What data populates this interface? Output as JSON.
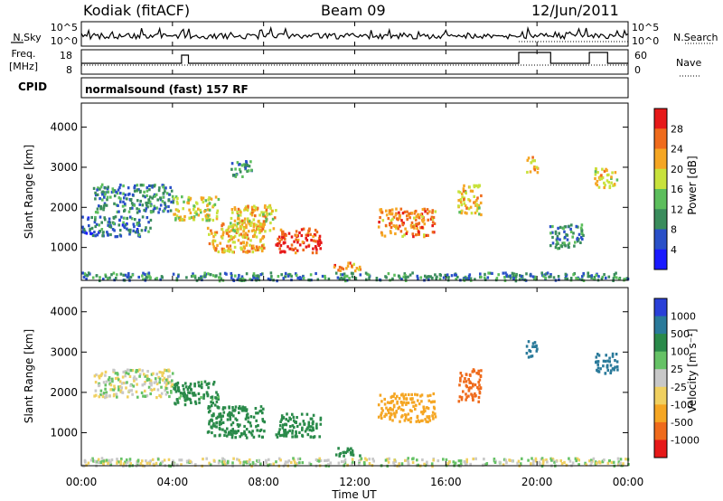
{
  "header": {
    "station": "Kodiak (fitACF)",
    "beam": "Beam 09",
    "date": "12/Jun/2011"
  },
  "panels": {
    "nsky_label": "N.Sky",
    "nsearch_label": "N.Search",
    "freq_label_1": "Freq.",
    "freq_label_2": "[MHz]",
    "nave_label": "Nave",
    "cpid_label": "CPID",
    "cpid_value": "normalsound (fast) 157 RF",
    "noise_ticks": [
      "10^5",
      "10^0"
    ],
    "freq_ticks": [
      "18",
      "8"
    ],
    "nave_ticks": [
      "60",
      "0"
    ]
  },
  "axes": {
    "ylabel": "Slant Range [km]",
    "xlabel": "Time UT",
    "yticks": [
      "4000",
      "3000",
      "2000",
      "1000"
    ],
    "xticks": [
      "00:00",
      "04:00",
      "08:00",
      "12:00",
      "16:00",
      "20:00",
      "00:00"
    ]
  },
  "colorbars": {
    "power_label": "Power [dB]",
    "power_ticks": [
      "28",
      "24",
      "20",
      "16",
      "12",
      "8",
      "4"
    ],
    "power_colors": [
      "#1a1aff",
      "#2a50c8",
      "#3a8c5c",
      "#5cbe5c",
      "#c8e23c",
      "#f5a623",
      "#ef6b1c",
      "#e61919"
    ],
    "velocity_label": "Velocity [m s⁻¹]",
    "velocity_ticks": [
      "1000",
      "500",
      "100",
      "25",
      "-25",
      "-100",
      "-500",
      "-1000"
    ],
    "velocity_colors": [
      "#2a40d8",
      "#2a7a9a",
      "#2a8a4a",
      "#66c266",
      "#c8c8c8",
      "#f0d060",
      "#f5a623",
      "#ef6b1c",
      "#e61919"
    ]
  },
  "chart_data": [
    {
      "type": "heatmap",
      "title": "Power",
      "xlabel": "Time UT",
      "ylabel": "Slant Range [km]",
      "xlim": [
        "00:00",
        "24:00"
      ],
      "ylim": [
        180,
        4600
      ],
      "colorbar": {
        "label": "Power [dB]",
        "range": [
          0,
          32
        ]
      },
      "regions": [
        {
          "t0": 0.0,
          "t1": 24.0,
          "r0": 200,
          "r1": 400,
          "power": 10
        },
        {
          "t0": 0.0,
          "t1": 3.0,
          "r0": 1300,
          "r1": 1800,
          "power": 8
        },
        {
          "t0": 0.5,
          "t1": 4.0,
          "r0": 1900,
          "r1": 2600,
          "power": 10
        },
        {
          "t0": 4.0,
          "t1": 6.0,
          "r0": 1700,
          "r1": 2300,
          "power": 18
        },
        {
          "t0": 5.5,
          "t1": 8.0,
          "r0": 900,
          "r1": 1700,
          "power": 22
        },
        {
          "t0": 6.5,
          "t1": 8.5,
          "r0": 1400,
          "r1": 2100,
          "power": 20
        },
        {
          "t0": 8.5,
          "t1": 10.5,
          "r0": 900,
          "r1": 1500,
          "power": 28
        },
        {
          "t0": 6.5,
          "t1": 7.5,
          "r0": 2800,
          "r1": 3200,
          "power": 10
        },
        {
          "t0": 11.0,
          "t1": 12.2,
          "r0": 450,
          "r1": 650,
          "power": 24
        },
        {
          "t0": 13.0,
          "t1": 15.5,
          "r0": 1300,
          "r1": 2000,
          "power": 24
        },
        {
          "t0": 16.5,
          "t1": 17.5,
          "r0": 1800,
          "r1": 2600,
          "power": 20
        },
        {
          "t0": 19.5,
          "t1": 20.0,
          "r0": 2900,
          "r1": 3300,
          "power": 22
        },
        {
          "t0": 22.5,
          "t1": 23.5,
          "r0": 2500,
          "r1": 3000,
          "power": 20
        },
        {
          "t0": 20.5,
          "t1": 22.0,
          "r0": 1000,
          "r1": 1600,
          "power": 10
        }
      ]
    },
    {
      "type": "heatmap",
      "title": "Velocity",
      "xlabel": "Time UT",
      "ylabel": "Slant Range [km]",
      "xlim": [
        "00:00",
        "24:00"
      ],
      "ylim": [
        180,
        4600
      ],
      "colorbar": {
        "label": "Velocity [m s⁻¹]",
        "range": [
          -1000,
          1000
        ]
      },
      "regions": [
        {
          "t0": 0.0,
          "t1": 24.0,
          "r0": 200,
          "r1": 400,
          "velocity": 0
        },
        {
          "t0": 0.5,
          "t1": 4.0,
          "r0": 1900,
          "r1": 2600,
          "velocity": 0
        },
        {
          "t0": 4.0,
          "t1": 6.0,
          "r0": 1700,
          "r1": 2300,
          "velocity": 150
        },
        {
          "t0": 5.5,
          "t1": 8.0,
          "r0": 900,
          "r1": 1700,
          "velocity": 300
        },
        {
          "t0": 8.5,
          "t1": 10.5,
          "r0": 900,
          "r1": 1500,
          "velocity": 200
        },
        {
          "t0": 11.0,
          "t1": 12.2,
          "r0": 450,
          "r1": 650,
          "velocity": 200
        },
        {
          "t0": 13.0,
          "t1": 15.5,
          "r0": 1300,
          "r1": 2000,
          "velocity": -400
        },
        {
          "t0": 16.5,
          "t1": 17.5,
          "r0": 1800,
          "r1": 2600,
          "velocity": -700
        },
        {
          "t0": 19.5,
          "t1": 20.0,
          "r0": 2900,
          "r1": 3300,
          "velocity": 700
        },
        {
          "t0": 22.5,
          "t1": 23.5,
          "r0": 2500,
          "r1": 3000,
          "velocity": 800
        }
      ]
    }
  ]
}
